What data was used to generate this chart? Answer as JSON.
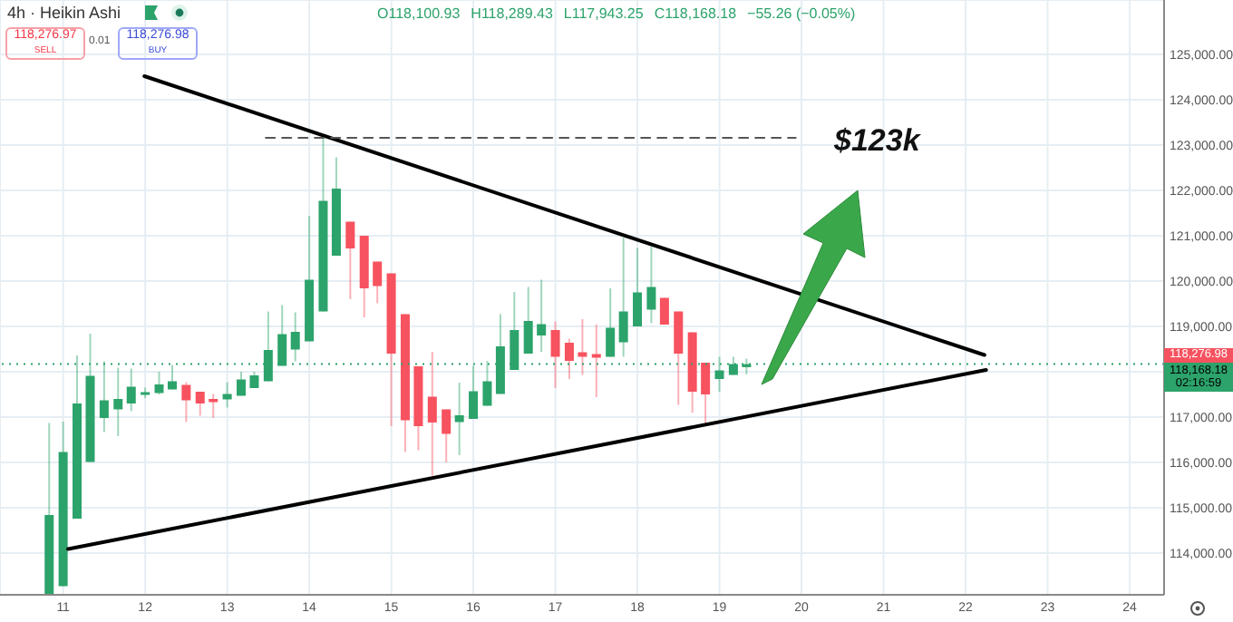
{
  "chart_data": {
    "type": "candlestick",
    "title": "4h · Heikin Ashi",
    "x": [
      10.83,
      11,
      11.17,
      11.33,
      11.5,
      11.67,
      11.83,
      12,
      12.17,
      12.33,
      12.5,
      12.67,
      12.83,
      13,
      13.17,
      13.33,
      13.5,
      13.67,
      13.83,
      14,
      14.17,
      14.33,
      14.5,
      14.67,
      14.83,
      15,
      15.17,
      15.33,
      15.5,
      15.67,
      15.83,
      16,
      16.17,
      16.33,
      16.5,
      16.67,
      16.83,
      17,
      17.17,
      17.33,
      17.5,
      17.67,
      17.83,
      18,
      18.17,
      18.33,
      18.5,
      18.67,
      18.83,
      19,
      19.17,
      19.33
    ],
    "ohlc": [
      [
        113100,
        116870,
        113100,
        114840
      ],
      [
        113270,
        116900,
        113270,
        116230
      ],
      [
        114760,
        118360,
        114760,
        117300
      ],
      [
        116010,
        118840,
        116010,
        117910
      ],
      [
        116980,
        118230,
        116670,
        117370
      ],
      [
        117170,
        118090,
        116580,
        117400
      ],
      [
        117300,
        118070,
        117130,
        117670
      ],
      [
        117490,
        117650,
        117420,
        117550
      ],
      [
        117530,
        118000,
        117500,
        117720
      ],
      [
        117610,
        118150,
        117610,
        117790
      ],
      [
        117710,
        117770,
        116890,
        117370
      ],
      [
        117560,
        117560,
        117030,
        117300
      ],
      [
        117400,
        117510,
        116980,
        117330
      ],
      [
        117390,
        117770,
        117210,
        117510
      ],
      [
        117470,
        118000,
        117470,
        117830
      ],
      [
        117640,
        118000,
        117640,
        117920
      ],
      [
        117790,
        119330,
        117790,
        118480
      ],
      [
        118130,
        119470,
        118130,
        118830
      ],
      [
        118490,
        119310,
        118230,
        118880
      ],
      [
        118670,
        121440,
        118670,
        120030
      ],
      [
        119330,
        123200,
        119330,
        121770
      ],
      [
        120560,
        122730,
        120560,
        122040
      ],
      [
        121310,
        121310,
        119600,
        120720
      ],
      [
        121000,
        121000,
        119200,
        119840
      ],
      [
        120430,
        120430,
        119510,
        119890
      ],
      [
        120170,
        120170,
        116800,
        118400
      ],
      [
        119270,
        119270,
        116230,
        116930
      ],
      [
        118120,
        118120,
        116270,
        116800
      ],
      [
        117450,
        118440,
        115710,
        116880
      ],
      [
        117170,
        117170,
        116000,
        116630
      ],
      [
        116890,
        117760,
        116160,
        117040
      ],
      [
        116960,
        118130,
        116960,
        117570
      ],
      [
        117250,
        118240,
        117250,
        117790
      ],
      [
        117510,
        119270,
        117510,
        118560
      ],
      [
        118040,
        119760,
        118040,
        118920
      ],
      [
        118400,
        119870,
        118400,
        119120
      ],
      [
        118800,
        120030,
        118440,
        119050
      ],
      [
        118920,
        119110,
        117640,
        118330
      ],
      [
        118640,
        118730,
        117840,
        118240
      ],
      [
        118430,
        119160,
        117930,
        118330
      ],
      [
        118390,
        119040,
        117440,
        118310
      ],
      [
        118330,
        119840,
        118330,
        118970
      ],
      [
        118650,
        120960,
        118330,
        119330
      ],
      [
        119000,
        120730,
        119000,
        119750
      ],
      [
        119370,
        120760,
        119070,
        119870
      ],
      [
        119630,
        119630,
        119040,
        119040
      ],
      [
        119330,
        119330,
        117270,
        118400
      ],
      [
        118870,
        118870,
        117100,
        117560
      ],
      [
        118200,
        118200,
        116800,
        117500
      ],
      [
        117840,
        118330,
        117560,
        118030
      ],
      [
        117930,
        118330,
        117930,
        118170
      ],
      [
        118100.93,
        118289.43,
        117943.25,
        118168.18
      ]
    ],
    "colors": [
      "#2ca36b",
      "#2ca36b",
      "#2ca36b",
      "#2ca36b",
      "#2ca36b",
      "#2ca36b",
      "#2ca36b",
      "#2ca36b",
      "#2ca36b",
      "#2ca36b",
      "#f7525f",
      "#f7525f",
      "#f7525f",
      "#2ca36b",
      "#2ca36b",
      "#2ca36b",
      "#2ca36b",
      "#2ca36b",
      "#2ca36b",
      "#2ca36b",
      "#2ca36b",
      "#2ca36b",
      "#f7525f",
      "#f7525f",
      "#f7525f",
      "#f7525f",
      "#f7525f",
      "#f7525f",
      "#f7525f",
      "#f7525f",
      "#2ca36b",
      "#2ca36b",
      "#2ca36b",
      "#2ca36b",
      "#2ca36b",
      "#2ca36b",
      "#2ca36b",
      "#f7525f",
      "#f7525f",
      "#f7525f",
      "#f7525f",
      "#2ca36b",
      "#2ca36b",
      "#2ca36b",
      "#2ca36b",
      "#f7525f",
      "#f7525f",
      "#f7525f",
      "#f7525f",
      "#2ca36b",
      "#2ca36b",
      "#2ca36b"
    ],
    "series": [
      {
        "type": "line",
        "x": [
          11.99,
          22.23
        ],
        "values": [
          124520,
          118370
        ],
        "color": "#000000"
      },
      {
        "type": "line",
        "x": [
          11.06,
          22.25
        ],
        "values": [
          114090,
          118040
        ],
        "color": "#000000"
      },
      {
        "type": "line",
        "x": [
          13.47,
          19.93
        ],
        "values": [
          123160,
          123160
        ],
        "color": "#555555",
        "line_style": "dashed"
      }
    ],
    "xlim": [
      10.23,
      24.42
    ],
    "xticks": [
      11,
      12,
      13,
      14,
      15,
      16,
      17,
      18,
      19,
      20,
      21,
      22,
      23,
      24
    ],
    "ylim": [
      113080,
      126200
    ],
    "yticks": [
      {
        "value": 114000,
        "label": "114,000.00"
      },
      {
        "value": 115000,
        "label": "115,000.00"
      },
      {
        "value": 116000,
        "label": "116,000.00"
      },
      {
        "value": 117000,
        "label": "117,000.00"
      },
      {
        "value": 118000,
        "label": null
      },
      {
        "value": 119000,
        "label": "119,000.00"
      },
      {
        "value": 120000,
        "label": "120,000.00"
      },
      {
        "value": 121000,
        "label": "121,000.00"
      },
      {
        "value": 122000,
        "label": "122,000.00"
      },
      {
        "value": 123000,
        "label": "123,000.00"
      },
      {
        "value": 124000,
        "label": "124,000.00"
      },
      {
        "value": 125000,
        "label": "125,000.00"
      }
    ],
    "grid": true,
    "ref_lines": [
      {
        "axis": "y",
        "value": 118168.18,
        "label": "118,168.18",
        "color": "#2ca36b",
        "line_style": "dotted"
      }
    ],
    "annotations": [
      "O118,100.93",
      "H118,289.43",
      "L117,943.25",
      "C118,168.18",
      "−55.26 (−0.05%)",
      "118,276.97",
      "SELL",
      "0.01",
      "118,276.98",
      "BUY",
      "118,276.98",
      "02:16:59",
      "$123k"
    ]
  }
}
